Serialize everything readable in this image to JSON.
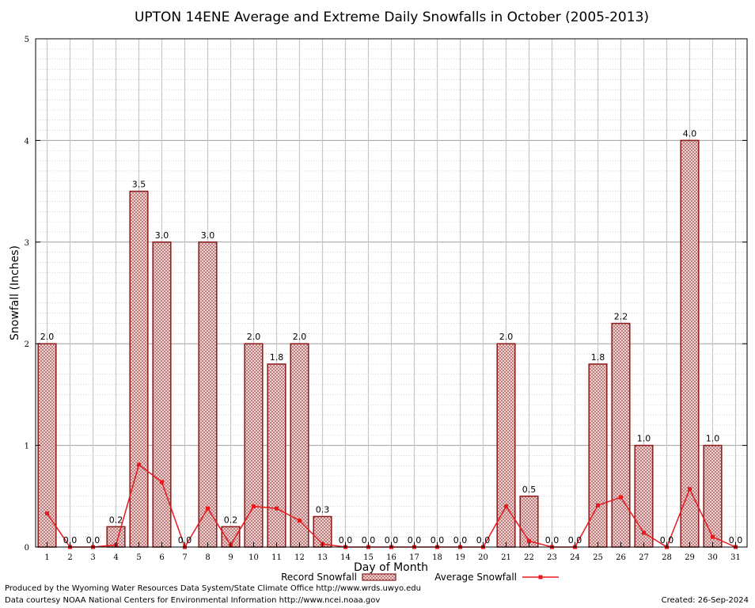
{
  "chart_data": {
    "type": "bar",
    "title": "UPTON 14ENE Average and Extreme Daily Snowfalls in October (2005-2013)",
    "xlabel": "Day of Month",
    "ylabel": "Snowfall (Inches)",
    "ylim": [
      0,
      5
    ],
    "yticks": [
      "0",
      "1",
      "2",
      "3",
      "4",
      "5"
    ],
    "categories": [
      "1",
      "2",
      "3",
      "4",
      "5",
      "6",
      "7",
      "8",
      "9",
      "10",
      "11",
      "12",
      "13",
      "14",
      "15",
      "16",
      "17",
      "18",
      "19",
      "20",
      "21",
      "22",
      "23",
      "24",
      "25",
      "26",
      "27",
      "28",
      "29",
      "30",
      "31"
    ],
    "series": [
      {
        "name": "Record Snowfall",
        "kind": "bar",
        "color": "#8b1a1a",
        "values": [
          2.0,
          0.0,
          0.0,
          0.2,
          3.5,
          3.0,
          0.0,
          3.0,
          0.2,
          2.0,
          1.8,
          2.0,
          0.3,
          0.0,
          0.0,
          0.0,
          0.0,
          0.0,
          0.0,
          0.0,
          2.0,
          0.5,
          0.0,
          0.0,
          1.8,
          2.2,
          1.0,
          0.0,
          4.0,
          1.0,
          0.0
        ],
        "labels": [
          "2.0",
          "0.0",
          "0.0",
          "0.2",
          "3.5",
          "3.0",
          "0.0",
          "3.0",
          "0.2",
          "2.0",
          "1.8",
          "2.0",
          "0.3",
          "0.0",
          "0.0",
          "0.0",
          "0.0",
          "0.0",
          "0.0",
          "0.0",
          "2.0",
          "0.5",
          "0.0",
          "0.0",
          "1.8",
          "2.2",
          "1.0",
          "0.0",
          "4.0",
          "1.0",
          "0.0"
        ]
      },
      {
        "name": "Average Snowfall",
        "kind": "line",
        "color": "#e8191f",
        "values": [
          0.33,
          0.0,
          0.0,
          0.02,
          0.81,
          0.64,
          0.0,
          0.38,
          0.02,
          0.4,
          0.38,
          0.26,
          0.03,
          0.0,
          0.0,
          0.0,
          0.0,
          0.0,
          0.0,
          0.0,
          0.4,
          0.06,
          0.0,
          0.0,
          0.41,
          0.49,
          0.14,
          0.0,
          0.57,
          0.1,
          0.0
        ]
      }
    ],
    "grid": true,
    "legend_position": "bottom"
  },
  "footer": {
    "produced_by": "Produced by the Wyoming Water Resources Data System/State Climate Office http://www.wrds.uwyo.edu",
    "data_courtesy": "Data courtesy NOAA National Centers for Environmental Information http://www.ncei.noaa.gov",
    "created": "Created:  26-Sep-2024"
  }
}
